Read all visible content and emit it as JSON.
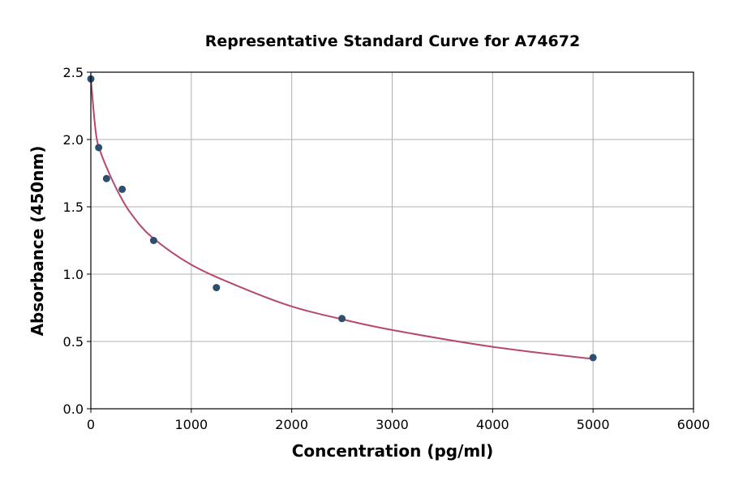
{
  "chart_data": {
    "type": "scatter",
    "title": "Representative Standard Curve for A74672",
    "xlabel": "Concentration (pg/ml)",
    "ylabel": "Absorbance (450nm)",
    "xlim": [
      0,
      6000
    ],
    "ylim": [
      0,
      2.5
    ],
    "xticks": [
      0,
      1000,
      2000,
      3000,
      4000,
      5000,
      6000
    ],
    "yticks": [
      0.0,
      0.5,
      1.0,
      1.5,
      2.0,
      2.5
    ],
    "grid": true,
    "points": {
      "x": [
        0,
        78,
        156,
        312,
        625,
        1250,
        2500,
        5000
      ],
      "y": [
        2.45,
        1.94,
        1.71,
        1.63,
        1.25,
        0.9,
        0.67,
        0.38
      ]
    },
    "fit_curve": {
      "x": [
        0,
        50,
        100,
        200,
        300,
        400,
        600,
        1000,
        1500,
        2000,
        2500,
        3000,
        4000,
        5000
      ],
      "y": [
        2.45,
        2.05,
        1.9,
        1.72,
        1.57,
        1.45,
        1.28,
        1.07,
        0.9,
        0.76,
        0.665,
        0.585,
        0.46,
        0.37
      ]
    },
    "colors": {
      "points": "#2c4f6e",
      "curve": "#b5496b",
      "grid": "#b0b0b0"
    }
  }
}
